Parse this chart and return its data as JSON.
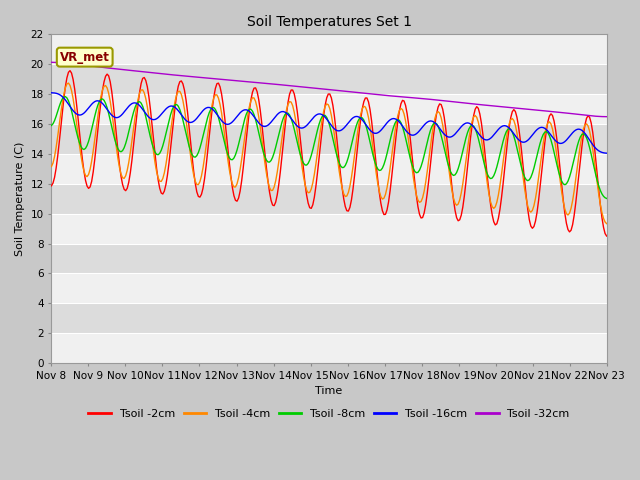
{
  "title": "Soil Temperatures Set 1",
  "xlabel": "Time",
  "ylabel": "Soil Temperature (C)",
  "ylim": [
    0,
    22
  ],
  "yticks": [
    0,
    2,
    4,
    6,
    8,
    10,
    12,
    14,
    16,
    18,
    20,
    22
  ],
  "xtick_labels": [
    "Nov 8",
    "Nov 9",
    "Nov 10",
    "Nov 11",
    "Nov 12",
    "Nov 13",
    "Nov 14",
    "Nov 15",
    "Nov 16",
    "Nov 17",
    "Nov 18",
    "Nov 19",
    "Nov 20",
    "Nov 21",
    "Nov 22",
    "Nov 23"
  ],
  "annotation_text": "VR_met",
  "annotation_bg": "#ffffcc",
  "annotation_border": "#999900",
  "series_colors": [
    "#ff0000",
    "#ff8800",
    "#00cc00",
    "#0000ff",
    "#aa00cc"
  ],
  "series_labels": [
    "Tsoil -2cm",
    "Tsoil -4cm",
    "Tsoil -8cm",
    "Tsoil -16cm",
    "Tsoil -32cm"
  ],
  "n_points": 360,
  "figsize": [
    6.4,
    4.8
  ],
  "dpi": 100,
  "band_light": "#f0f0f0",
  "band_dark": "#dcdcdc",
  "fig_bg": "#c8c8c8",
  "title_fontsize": 10,
  "label_fontsize": 8,
  "tick_fontsize": 7.5
}
